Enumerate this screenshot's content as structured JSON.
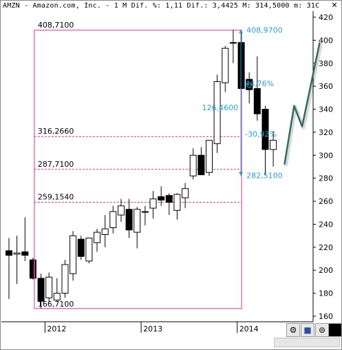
{
  "header": {
    "title": "AMZN - Amazon.com, Inc. - 1 M Dif. %: 1,11 Dif.: 3,4425 M: 314,5000 m: 31C"
  },
  "icons": {
    "close": "close-icon",
    "settings": "settings-icon",
    "save": "save-icon",
    "pin": "pin-icon",
    "color": "color-swatch-icon"
  },
  "colors": {
    "bull": "#ffffff",
    "bear": "#000000",
    "channel": "#d4308e",
    "measure": "#2a9fd6",
    "forecast": "#2f6b63"
  },
  "chart_data": {
    "type": "candlestick",
    "symbol": "AMZN",
    "period": "1 M",
    "y_ticks": [
      160,
      180,
      200,
      220,
      240,
      260,
      280,
      300,
      320,
      340,
      360,
      380,
      400,
      420
    ],
    "x_ticks": [
      {
        "label": "2012",
        "idx": 4.5
      },
      {
        "label": "2013",
        "idx": 16.5
      },
      {
        "label": "2014",
        "idx": 28.5
      }
    ],
    "grid": false,
    "candles": [
      {
        "o": 217,
        "h": 228,
        "l": 175,
        "c": 213
      },
      {
        "o": 214,
        "h": 230,
        "l": 188,
        "c": 215
      },
      {
        "o": 216,
        "h": 246,
        "l": 208,
        "c": 213
      },
      {
        "o": 209,
        "h": 211,
        "l": 192,
        "c": 193
      },
      {
        "o": 193,
        "h": 197,
        "l": 167,
        "c": 173
      },
      {
        "o": 176,
        "h": 198,
        "l": 172,
        "c": 194
      },
      {
        "o": 174,
        "h": 193,
        "l": 173,
        "c": 180
      },
      {
        "o": 180,
        "h": 209,
        "l": 176,
        "c": 205
      },
      {
        "o": 197,
        "h": 234,
        "l": 191,
        "c": 230
      },
      {
        "o": 227,
        "h": 230,
        "l": 209,
        "c": 212
      },
      {
        "o": 208,
        "h": 227,
        "l": 206,
        "c": 228
      },
      {
        "o": 224,
        "h": 236,
        "l": 216,
        "c": 233
      },
      {
        "o": 231,
        "h": 248,
        "l": 220,
        "c": 236
      },
      {
        "o": 237,
        "h": 256,
        "l": 232,
        "c": 251
      },
      {
        "o": 248,
        "h": 262,
        "l": 242,
        "c": 256
      },
      {
        "o": 253,
        "h": 262,
        "l": 228,
        "c": 235
      },
      {
        "o": 233,
        "h": 255,
        "l": 219,
        "c": 253
      },
      {
        "o": 251,
        "h": 256,
        "l": 239,
        "c": 251
      },
      {
        "o": 254,
        "h": 269,
        "l": 245,
        "c": 262
      },
      {
        "o": 264,
        "h": 273,
        "l": 256,
        "c": 261
      },
      {
        "o": 265,
        "h": 267,
        "l": 248,
        "c": 259
      },
      {
        "o": 252,
        "h": 267,
        "l": 244,
        "c": 266
      },
      {
        "o": 263,
        "h": 276,
        "l": 254,
        "c": 271
      },
      {
        "o": 282,
        "h": 306,
        "l": 279,
        "c": 300
      },
      {
        "o": 300,
        "h": 307,
        "l": 283,
        "c": 283
      },
      {
        "o": 285,
        "h": 312,
        "l": 282,
        "c": 313
      },
      {
        "o": 310,
        "h": 370,
        "l": 302,
        "c": 364
      },
      {
        "o": 363,
        "h": 395,
        "l": 355,
        "c": 393
      },
      {
        "o": 398,
        "h": 408.97,
        "l": 380,
        "c": 398
      },
      {
        "o": 398,
        "h": 407,
        "l": 360,
        "c": 358
      },
      {
        "o": 366,
        "h": 372,
        "l": 345,
        "c": 357
      },
      {
        "o": 358,
        "h": 386,
        "l": 330,
        "c": 336
      },
      {
        "o": 340,
        "h": 343,
        "l": 282.51,
        "c": 305
      },
      {
        "o": 305,
        "h": 321,
        "l": 290,
        "c": 313
      }
    ],
    "channel_levels": [
      {
        "label": "408,7100",
        "value": 408.71
      },
      {
        "label": "316,2660",
        "value": 316.266
      },
      {
        "label": "287,7100",
        "value": 287.71
      },
      {
        "label": "259,1540",
        "value": 259.154
      },
      {
        "label": "166,7100",
        "value": 166.71
      }
    ],
    "measure": {
      "high_label": "408,9700",
      "high": 408.97,
      "low_label": "282,5100",
      "low": 282.51,
      "range_label": "126,4600",
      "pct_up_label": "44,76%",
      "pct_down_label": "-30,92%"
    },
    "forecast_path": [
      {
        "idx": 34.4,
        "v": 292
      },
      {
        "idx": 35.6,
        "v": 343
      },
      {
        "idx": 36.6,
        "v": 325
      },
      {
        "idx": 38.8,
        "v": 398
      }
    ]
  }
}
